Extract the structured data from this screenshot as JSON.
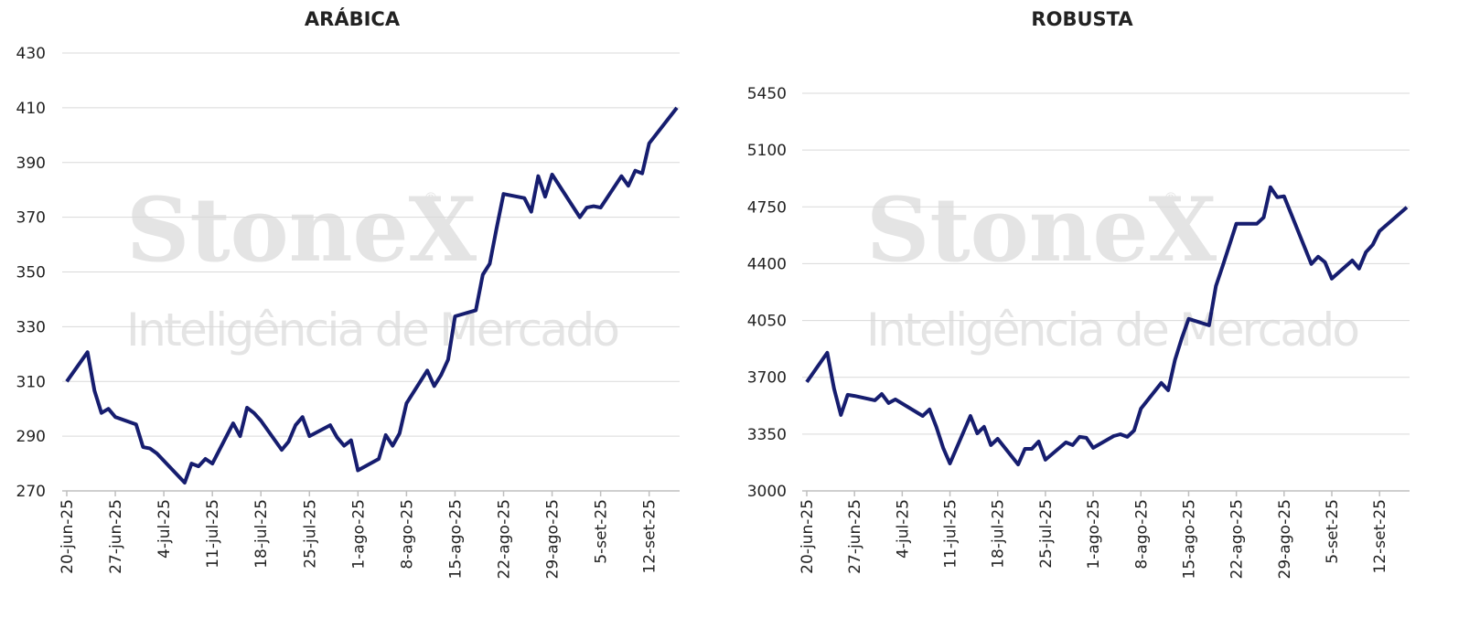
{
  "chart_data": [
    {
      "type": "line",
      "title": "ARÁBICA",
      "watermark": {
        "brand": "StoneX",
        "mark": "®",
        "tagline": "Inteligência de Mercado"
      },
      "x": [
        "2025-06-20",
        "2025-06-23",
        "2025-06-24",
        "2025-06-25",
        "2025-06-26",
        "2025-06-27",
        "2025-06-30",
        "2025-07-01",
        "2025-07-02",
        "2025-07-03",
        "2025-07-07",
        "2025-07-08",
        "2025-07-09",
        "2025-07-10",
        "2025-07-11",
        "2025-07-14",
        "2025-07-15",
        "2025-07-16",
        "2025-07-17",
        "2025-07-18",
        "2025-07-21",
        "2025-07-22",
        "2025-07-23",
        "2025-07-24",
        "2025-07-25",
        "2025-07-28",
        "2025-07-29",
        "2025-07-30",
        "2025-07-31",
        "2025-08-01",
        "2025-08-04",
        "2025-08-05",
        "2025-08-06",
        "2025-08-07",
        "2025-08-08",
        "2025-08-11",
        "2025-08-12",
        "2025-08-13",
        "2025-08-14",
        "2025-08-15",
        "2025-08-18",
        "2025-08-19",
        "2025-08-20",
        "2025-08-21",
        "2025-08-22",
        "2025-08-25",
        "2025-08-26",
        "2025-08-27",
        "2025-08-28",
        "2025-08-29",
        "2025-09-02",
        "2025-09-03",
        "2025-09-04",
        "2025-09-05",
        "2025-09-08",
        "2025-09-09",
        "2025-09-10",
        "2025-09-11",
        "2025-09-12",
        "2025-09-16"
      ],
      "series": [
        {
          "color": "#161d6f",
          "values": [
            310,
            320.7,
            306.6,
            298.5,
            300,
            297,
            294.3,
            286,
            285.5,
            283.7,
            273,
            280,
            279,
            281.7,
            280,
            294.7,
            290,
            300.4,
            298.5,
            295.7,
            285,
            288,
            294,
            297,
            290,
            294,
            289.5,
            286.5,
            288.5,
            277.5,
            281.7,
            290.4,
            286.5,
            291,
            302,
            314,
            308.3,
            312.4,
            318,
            333.8,
            336,
            349,
            353,
            366,
            378.5,
            377,
            372,
            385,
            377.5,
            385.6,
            370,
            373.5,
            374,
            373.5,
            385,
            381.5,
            387,
            386,
            397,
            410
          ]
        }
      ],
      "xlim": [
        "2025-06-20",
        "2025-09-16"
      ],
      "xticks": [
        {
          "value": "2025-06-20",
          "label": "20-jun-25"
        },
        {
          "value": "2025-06-27",
          "label": "27-jun-25"
        },
        {
          "value": "2025-07-04",
          "label": "4-jul-25"
        },
        {
          "value": "2025-07-11",
          "label": "11-jul-25"
        },
        {
          "value": "2025-07-18",
          "label": "18-jul-25"
        },
        {
          "value": "2025-07-25",
          "label": "25-jul-25"
        },
        {
          "value": "2025-08-01",
          "label": "1-ago-25"
        },
        {
          "value": "2025-08-08",
          "label": "8-ago-25"
        },
        {
          "value": "2025-08-15",
          "label": "15-ago-25"
        },
        {
          "value": "2025-08-22",
          "label": "22-ago-25"
        },
        {
          "value": "2025-08-29",
          "label": "29-ago-25"
        },
        {
          "value": "2025-09-05",
          "label": "5-set-25"
        },
        {
          "value": "2025-09-12",
          "label": "12-set-25"
        }
      ],
      "ylim": [
        270,
        430
      ],
      "yticks": [
        270,
        290,
        310,
        330,
        350,
        370,
        390,
        410,
        430
      ],
      "grid": true
    },
    {
      "type": "line",
      "title": "ROBUSTA",
      "watermark": {
        "brand": "StoneX",
        "mark": "®",
        "tagline": "Inteligência de Mercado"
      },
      "x": [
        "2025-06-20",
        "2025-06-23",
        "2025-06-24",
        "2025-06-25",
        "2025-06-26",
        "2025-06-27",
        "2025-06-30",
        "2025-07-01",
        "2025-07-02",
        "2025-07-03",
        "2025-07-07",
        "2025-07-08",
        "2025-07-09",
        "2025-07-10",
        "2025-07-11",
        "2025-07-14",
        "2025-07-15",
        "2025-07-16",
        "2025-07-17",
        "2025-07-18",
        "2025-07-21",
        "2025-07-22",
        "2025-07-23",
        "2025-07-24",
        "2025-07-25",
        "2025-07-28",
        "2025-07-29",
        "2025-07-30",
        "2025-07-31",
        "2025-08-01",
        "2025-08-04",
        "2025-08-05",
        "2025-08-06",
        "2025-08-07",
        "2025-08-08",
        "2025-08-11",
        "2025-08-12",
        "2025-08-13",
        "2025-08-14",
        "2025-08-15",
        "2025-08-18",
        "2025-08-19",
        "2025-08-20",
        "2025-08-21",
        "2025-08-22",
        "2025-08-25",
        "2025-08-26",
        "2025-08-27",
        "2025-08-28",
        "2025-08-29",
        "2025-09-02",
        "2025-09-03",
        "2025-09-04",
        "2025-09-05",
        "2025-09-08",
        "2025-09-09",
        "2025-09-10",
        "2025-09-11",
        "2025-09-12",
        "2025-09-16"
      ],
      "series": [
        {
          "color": "#161d6f",
          "values": [
            3671,
            3851,
            3631,
            3468,
            3592,
            3585,
            3558,
            3597,
            3541,
            3564,
            3462,
            3502,
            3395,
            3265,
            3169,
            3462,
            3355,
            3395,
            3282,
            3321,
            3163,
            3259,
            3259,
            3304,
            3192,
            3299,
            3282,
            3333,
            3327,
            3265,
            3338,
            3349,
            3333,
            3372,
            3507,
            3665,
            3620,
            3806,
            3941,
            4060,
            4020,
            4262,
            4386,
            4516,
            4646,
            4646,
            4685,
            4871,
            4809,
            4815,
            4398,
            4443,
            4409,
            4308,
            4420,
            4370,
            4471,
            4516,
            4601,
            4747
          ]
        }
      ],
      "xlim": [
        "2025-06-20",
        "2025-09-16"
      ],
      "xticks": [
        {
          "value": "2025-06-20",
          "label": "20-jun-25"
        },
        {
          "value": "2025-06-27",
          "label": "27-jun-25"
        },
        {
          "value": "2025-07-04",
          "label": "4-jul-25"
        },
        {
          "value": "2025-07-11",
          "label": "11-jul-25"
        },
        {
          "value": "2025-07-18",
          "label": "18-jul-25"
        },
        {
          "value": "2025-07-25",
          "label": "25-jul-25"
        },
        {
          "value": "2025-08-01",
          "label": "1-ago-25"
        },
        {
          "value": "2025-08-08",
          "label": "8-ago-25"
        },
        {
          "value": "2025-08-15",
          "label": "15-ago-25"
        },
        {
          "value": "2025-08-22",
          "label": "22-ago-25"
        },
        {
          "value": "2025-08-29",
          "label": "29-ago-25"
        },
        {
          "value": "2025-09-05",
          "label": "5-set-25"
        },
        {
          "value": "2025-09-12",
          "label": "12-set-25"
        }
      ],
      "ylim": [
        3000,
        5450
      ],
      "yticks": [
        3000,
        3350,
        3700,
        4050,
        4400,
        4750,
        5100,
        5450
      ],
      "grid": true
    }
  ]
}
